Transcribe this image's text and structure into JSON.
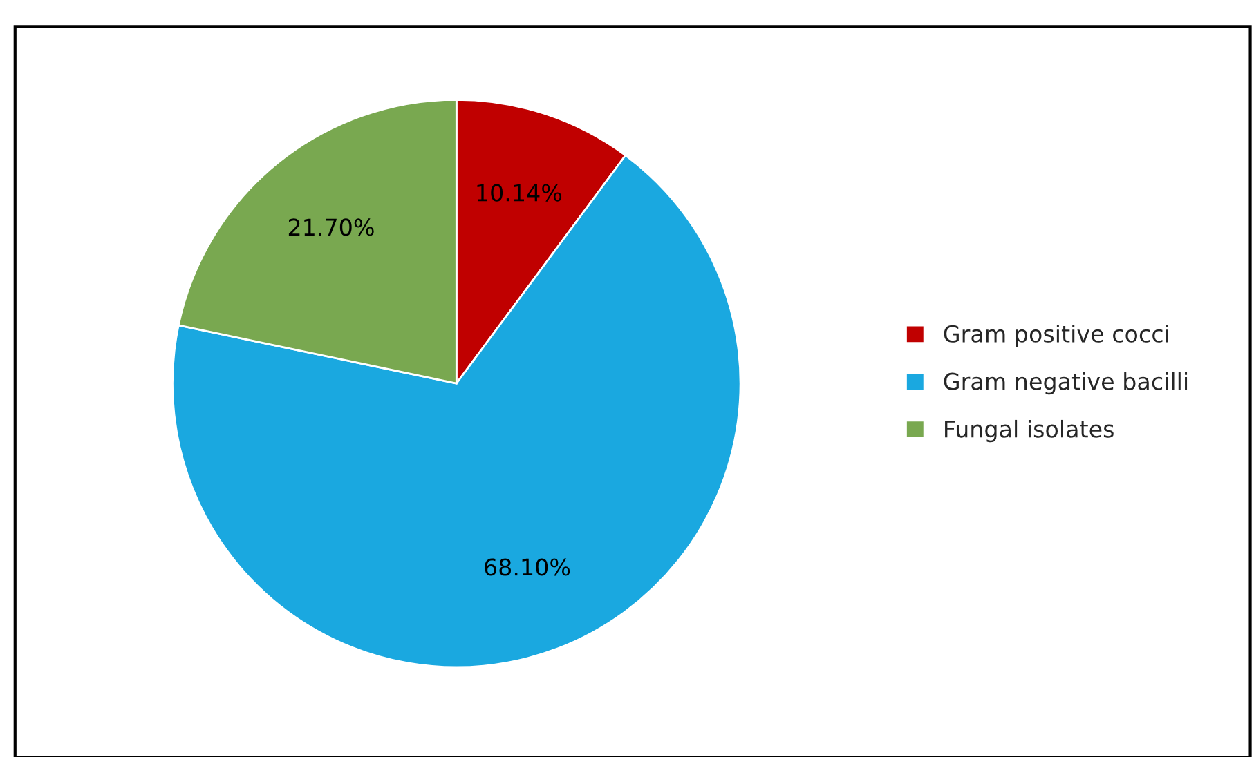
{
  "chart_data": {
    "type": "pie",
    "categories": [
      "Gram positive cocci",
      "Gram negative bacilli",
      "Fungal isolates"
    ],
    "values": [
      10.14,
      68.1,
      21.7
    ],
    "value_labels": [
      "10.14%",
      "68.10%",
      "21.70%"
    ],
    "colors": [
      "#c00000",
      "#1aa8e0",
      "#79a850"
    ],
    "legend": "right"
  }
}
